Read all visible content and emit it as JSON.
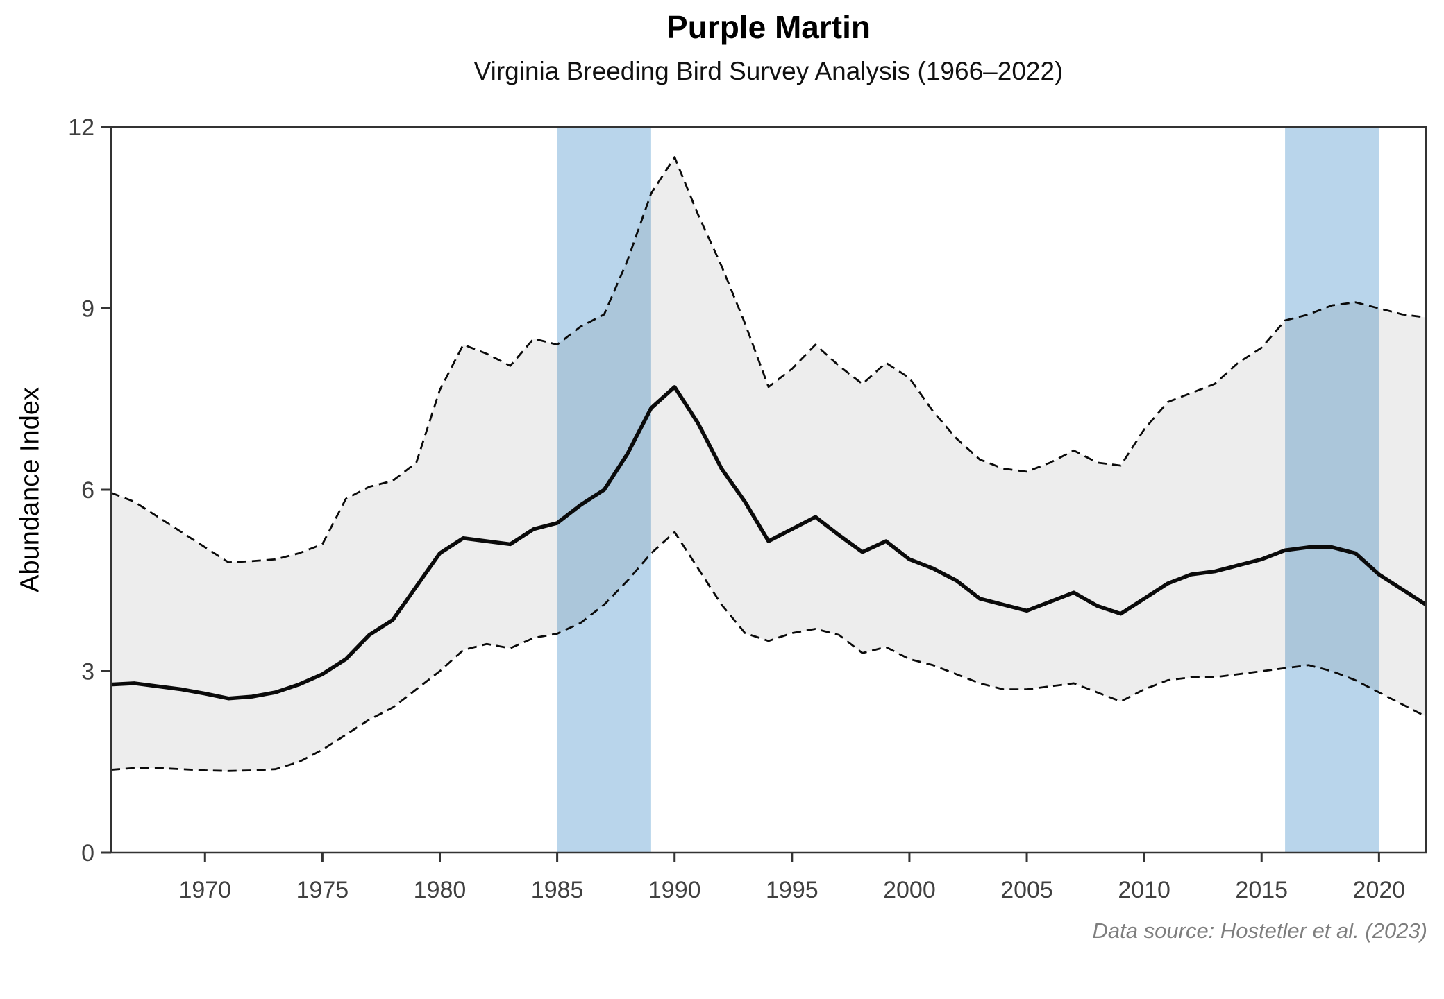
{
  "chart_data": {
    "type": "line",
    "title": "Purple Martin",
    "subtitle": "Virginia Breeding Bird Survey Analysis (1966–2022)",
    "ylabel": "Abundance Index",
    "xlabel": "",
    "source_note": "Data source: Hostetler et al. (2023)",
    "legend": "none",
    "grid": false,
    "xlim": [
      1966,
      2022
    ],
    "ylim": [
      0,
      12
    ],
    "x_ticks": [
      1970,
      1975,
      1980,
      1985,
      1990,
      1995,
      2000,
      2005,
      2010,
      2015,
      2020
    ],
    "y_ticks": [
      0,
      3,
      6,
      9,
      12
    ],
    "highlight_bands": [
      {
        "from": 1985,
        "to": 1989
      },
      {
        "from": 2016,
        "to": 2020
      }
    ],
    "x": [
      1966,
      1967,
      1968,
      1969,
      1970,
      1971,
      1972,
      1973,
      1974,
      1975,
      1976,
      1977,
      1978,
      1979,
      1980,
      1981,
      1982,
      1983,
      1984,
      1985,
      1986,
      1987,
      1988,
      1989,
      1990,
      1991,
      1992,
      1993,
      1994,
      1995,
      1996,
      1997,
      1998,
      1999,
      2000,
      2001,
      2002,
      2003,
      2004,
      2005,
      2006,
      2007,
      2008,
      2009,
      2010,
      2011,
      2012,
      2013,
      2014,
      2015,
      2016,
      2017,
      2018,
      2019,
      2020,
      2021,
      2022
    ],
    "series": [
      {
        "name": "trend",
        "style": "solid",
        "values": [
          2.78,
          2.8,
          2.75,
          2.7,
          2.63,
          2.55,
          2.58,
          2.65,
          2.78,
          2.95,
          3.2,
          3.6,
          3.85,
          4.4,
          4.95,
          5.2,
          5.15,
          5.1,
          5.35,
          5.45,
          5.75,
          6.0,
          6.6,
          7.35,
          7.7,
          7.1,
          6.35,
          5.8,
          5.15,
          5.35,
          5.55,
          5.25,
          4.97,
          5.15,
          4.85,
          4.7,
          4.5,
          4.2,
          4.1,
          4.0,
          4.15,
          4.3,
          4.08,
          3.95,
          4.2,
          4.45,
          4.6,
          4.65,
          4.75,
          4.85,
          5.0,
          5.05,
          5.05,
          4.95,
          4.6,
          4.35,
          4.1
        ]
      },
      {
        "name": "lower_ci",
        "style": "dashed",
        "values": [
          1.37,
          1.4,
          1.4,
          1.38,
          1.36,
          1.35,
          1.36,
          1.38,
          1.5,
          1.7,
          1.95,
          2.2,
          2.4,
          2.7,
          3.0,
          3.35,
          3.45,
          3.38,
          3.55,
          3.62,
          3.8,
          4.1,
          4.5,
          4.95,
          5.3,
          4.7,
          4.1,
          3.63,
          3.5,
          3.63,
          3.7,
          3.6,
          3.3,
          3.4,
          3.2,
          3.1,
          2.95,
          2.8,
          2.7,
          2.7,
          2.75,
          2.8,
          2.65,
          2.5,
          2.7,
          2.85,
          2.9,
          2.9,
          2.95,
          3.0,
          3.05,
          3.1,
          3.0,
          2.85,
          2.65,
          2.45,
          2.25
        ]
      },
      {
        "name": "upper_ci",
        "style": "dashed",
        "values": [
          5.95,
          5.8,
          5.55,
          5.3,
          5.05,
          4.8,
          4.82,
          4.85,
          4.95,
          5.1,
          5.85,
          6.05,
          6.15,
          6.45,
          7.65,
          8.4,
          8.25,
          8.05,
          8.5,
          8.4,
          8.7,
          8.9,
          9.8,
          10.9,
          11.5,
          10.55,
          9.7,
          8.75,
          7.7,
          8.0,
          8.4,
          8.05,
          7.75,
          8.1,
          7.85,
          7.3,
          6.85,
          6.5,
          6.35,
          6.3,
          6.45,
          6.65,
          6.45,
          6.4,
          7.0,
          7.45,
          7.6,
          7.75,
          8.1,
          8.35,
          8.8,
          8.9,
          9.05,
          9.1,
          9.0,
          8.9,
          8.85
        ]
      }
    ],
    "colors": {
      "band": "#b9d5eb",
      "ribbon": "rgba(0,0,0,0.072)",
      "line": "#0a0a0a",
      "axis": "#333333",
      "tick_label": "#404040",
      "footer": "#7e7e7e"
    }
  }
}
